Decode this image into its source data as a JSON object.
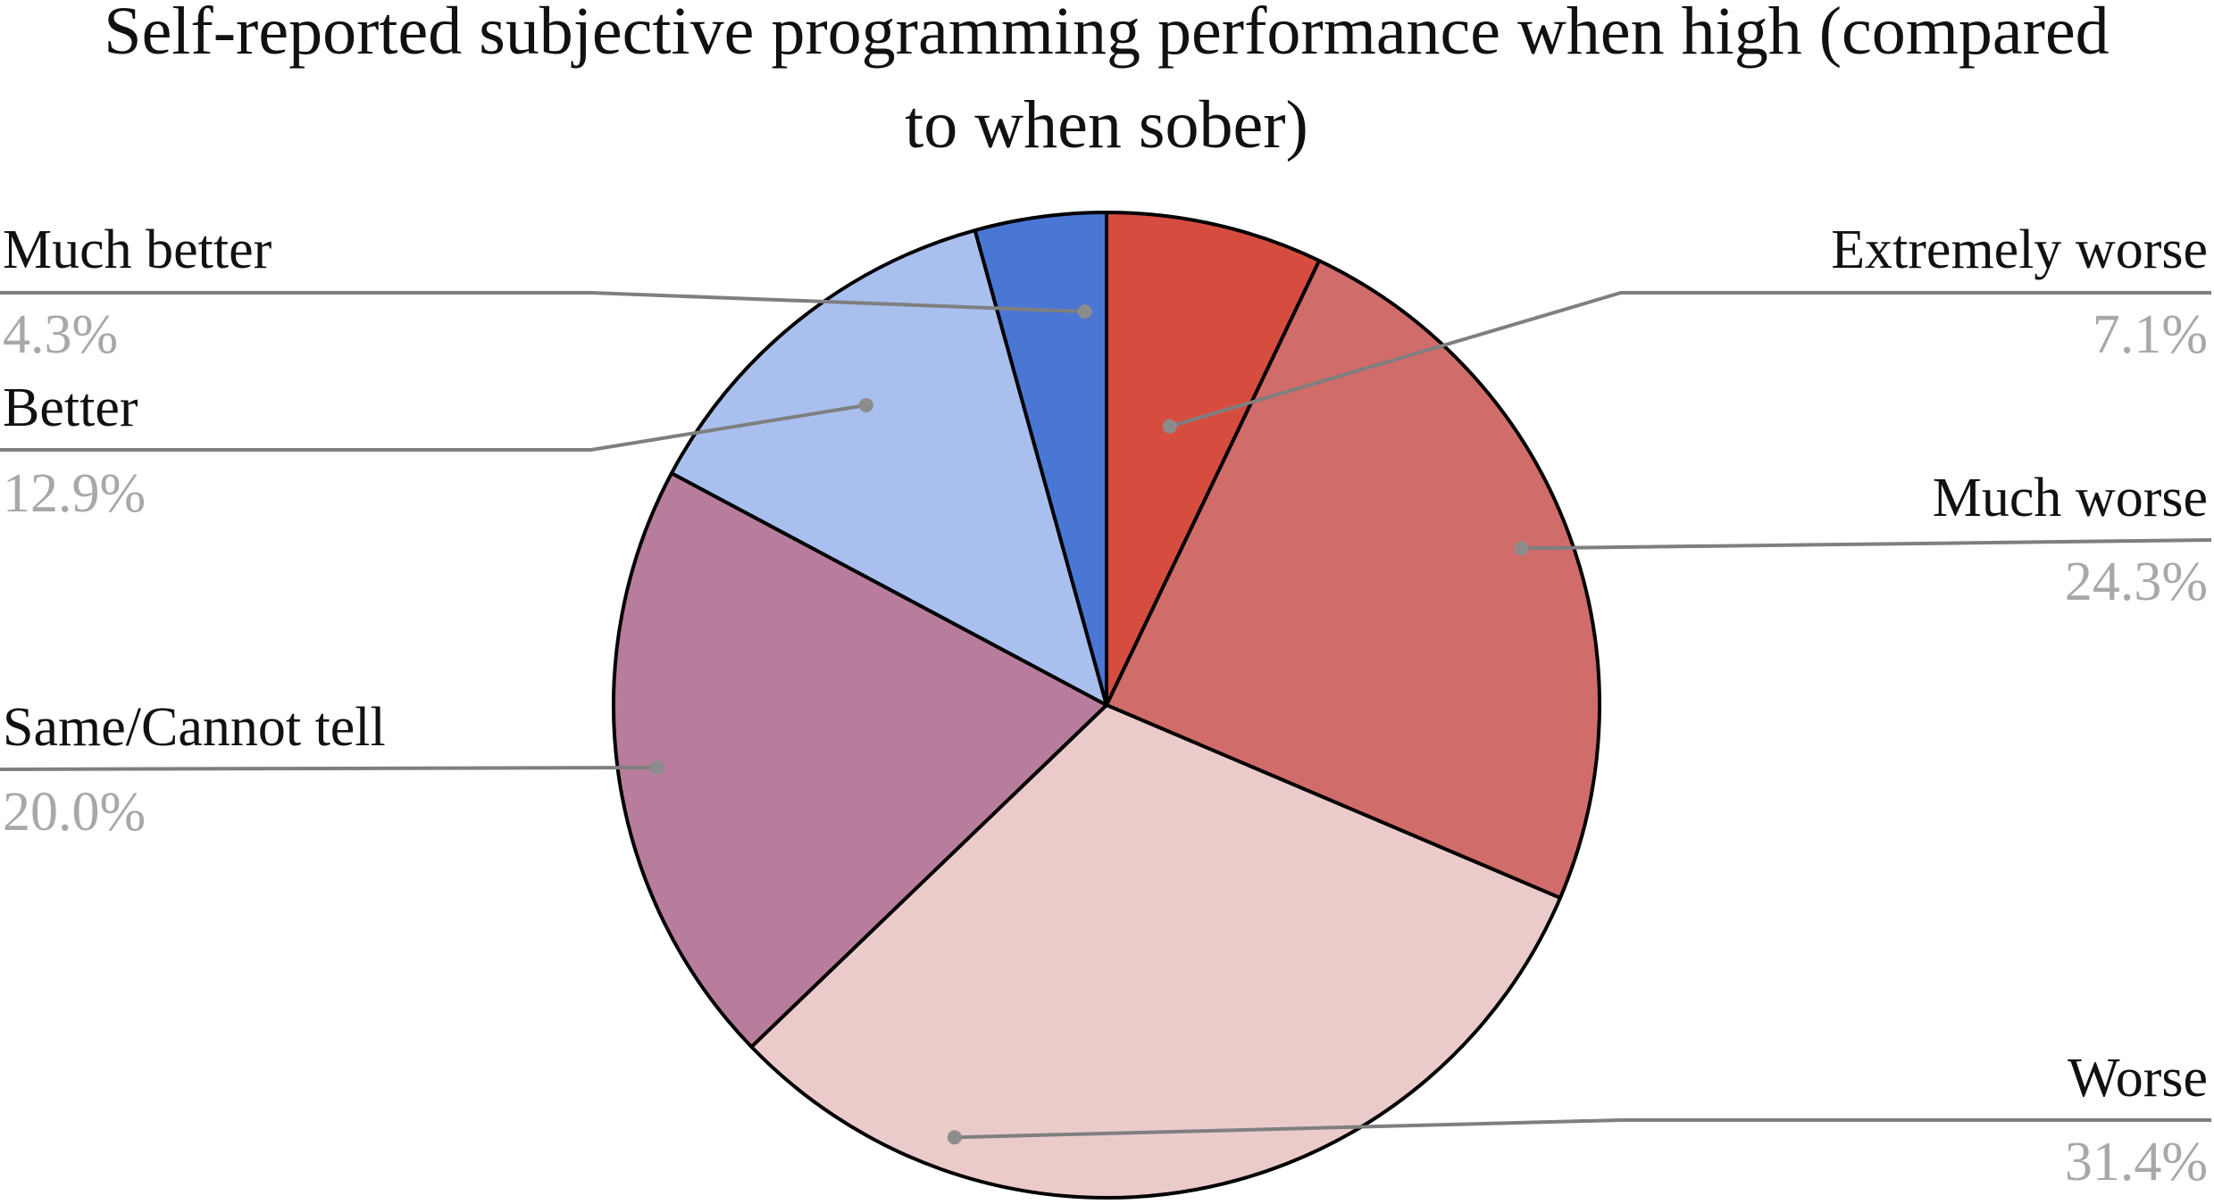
{
  "chart_data": {
    "type": "pie",
    "title_lines": [
      "Self-reported subjective programming performance when high (compared",
      "to when sober)"
    ],
    "slices": [
      {
        "label": "Extremely worse",
        "value": 7.1,
        "value_label": "7.1%",
        "color": "#d64d3f"
      },
      {
        "label": "Much worse",
        "value": 24.3,
        "value_label": "24.3%",
        "color": "#d06c69"
      },
      {
        "label": "Worse",
        "value": 31.4,
        "value_label": "31.4%",
        "color": "#ebcbca"
      },
      {
        "label": "Same/Cannot tell",
        "value": 20.0,
        "value_label": "20.0%",
        "color": "#b87d9c"
      },
      {
        "label": "Better",
        "value": 12.9,
        "value_label": "12.9%",
        "color": "#a9bfee"
      },
      {
        "label": "Much better",
        "value": 4.3,
        "value_label": "4.3%",
        "color": "#4a76d4"
      }
    ],
    "start_angle": "12 o'clock",
    "direction": "clockwise"
  }
}
